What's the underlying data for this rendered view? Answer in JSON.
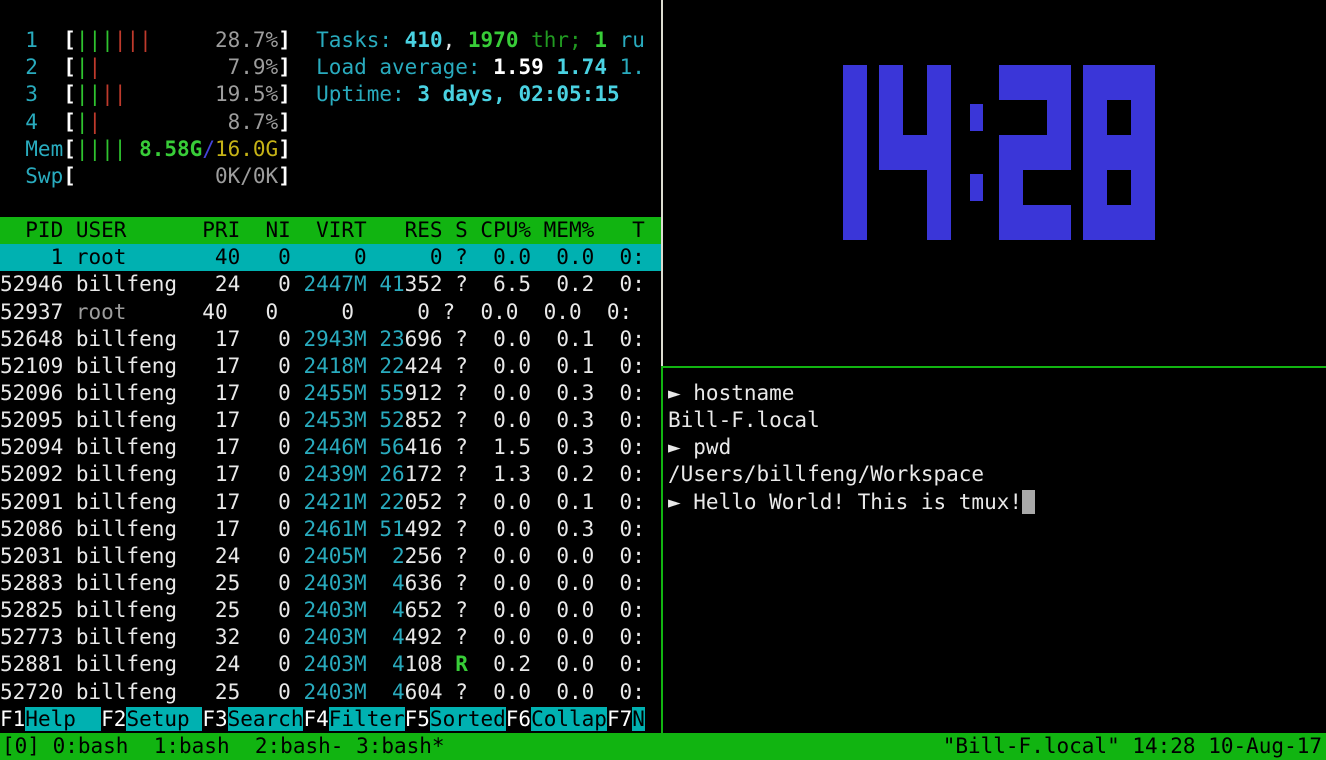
{
  "palette": {
    "background": "#000000",
    "tmux_green": "#11b411",
    "htop_header_green": "#11b411",
    "selection_cyan": "#00b1b1",
    "text_cyan": "#29abbe",
    "bright_cyan": "#4ad2e2",
    "bar_green": "#2fc32f",
    "bar_red": "#bf3a2c",
    "mem_total_yellow": "#c6b316",
    "clock_blue": "#3a36d8",
    "inactive_border": "#dcdcd0"
  },
  "htop": {
    "lines": [
      {
        "r": 1,
        "name": "cpu-meter-1",
        "i": false,
        "segs": [
          {
            "t": "  1  ",
            "c": "cyan"
          },
          {
            "t": "[",
            "c": "wb"
          },
          {
            "t": "|||",
            "c": "gbar"
          },
          {
            "t": "|||",
            "c": "rbar"
          },
          {
            "t": "     ",
            "c": "w"
          },
          {
            "t": "28.7%",
            "c": "gray"
          },
          {
            "t": "]",
            "c": "wb"
          },
          {
            "t": "  ",
            "c": "w"
          },
          {
            "t": "Tasks: ",
            "c": "cyan"
          },
          {
            "t": "410",
            "c": "bcyan"
          },
          {
            "t": ", ",
            "c": "w"
          },
          {
            "t": "1970",
            "c": "bgreen"
          },
          {
            "t": " thr; ",
            "c": "green"
          },
          {
            "t": "1",
            "c": "bgreen"
          },
          {
            "t": " ru",
            "c": "cyan"
          }
        ]
      },
      {
        "r": 2,
        "name": "cpu-meter-2",
        "i": false,
        "segs": [
          {
            "t": "  2  ",
            "c": "cyan"
          },
          {
            "t": "[",
            "c": "wb"
          },
          {
            "t": "|",
            "c": "gbar"
          },
          {
            "t": "|",
            "c": "rbar"
          },
          {
            "t": "         ",
            "c": "w"
          },
          {
            "t": " 7.9%",
            "c": "gray"
          },
          {
            "t": "]",
            "c": "wb"
          },
          {
            "t": "  ",
            "c": "w"
          },
          {
            "t": "Load average: ",
            "c": "cyan"
          },
          {
            "t": "1.59 ",
            "c": "wb"
          },
          {
            "t": "1.74 ",
            "c": "bcyan"
          },
          {
            "t": "1.",
            "c": "cyan"
          }
        ]
      },
      {
        "r": 3,
        "name": "cpu-meter-3",
        "i": false,
        "segs": [
          {
            "t": "  3  ",
            "c": "cyan"
          },
          {
            "t": "[",
            "c": "wb"
          },
          {
            "t": "||",
            "c": "gbar"
          },
          {
            "t": "||",
            "c": "rbar"
          },
          {
            "t": "       ",
            "c": "w"
          },
          {
            "t": "19.5%",
            "c": "gray"
          },
          {
            "t": "]",
            "c": "wb"
          },
          {
            "t": "  ",
            "c": "w"
          },
          {
            "t": "Uptime: ",
            "c": "cyan"
          },
          {
            "t": "3 days, 02:05:15",
            "c": "bcyan"
          }
        ]
      },
      {
        "r": 4,
        "name": "cpu-meter-4",
        "i": false,
        "segs": [
          {
            "t": "  4  ",
            "c": "cyan"
          },
          {
            "t": "[",
            "c": "wb"
          },
          {
            "t": "|",
            "c": "gbar"
          },
          {
            "t": "|",
            "c": "rbar"
          },
          {
            "t": "         ",
            "c": "w"
          },
          {
            "t": " 8.7%",
            "c": "gray"
          },
          {
            "t": "]",
            "c": "wb"
          }
        ]
      },
      {
        "r": 5,
        "name": "memory-meter",
        "i": false,
        "segs": [
          {
            "t": "  Mem",
            "c": "cyan"
          },
          {
            "t": "[",
            "c": "wb"
          },
          {
            "t": "||||",
            "c": "gbar"
          },
          {
            "t": " ",
            "c": "w"
          },
          {
            "t": "8.58G",
            "c": "bgreen"
          },
          {
            "t": "/",
            "c": "blue"
          },
          {
            "t": "16.0G",
            "c": "yellow"
          },
          {
            "t": "]",
            "c": "wb"
          }
        ]
      },
      {
        "r": 6,
        "name": "swap-meter",
        "i": false,
        "segs": [
          {
            "t": "  Swp",
            "c": "cyan"
          },
          {
            "t": "[",
            "c": "wb"
          },
          {
            "t": "           ",
            "c": "w"
          },
          {
            "t": "0K/0K",
            "c": "gray"
          },
          {
            "t": "]",
            "c": "wb"
          }
        ]
      },
      {
        "r": 8,
        "name": "process-table-header",
        "i": true,
        "bg": "bgGreen",
        "segs": [
          {
            "t": "  PID USER      PRI  NI  VIRT   RES S CPU% MEM%   T",
            "c": "hdr"
          }
        ]
      },
      {
        "r": 9,
        "name": "process-row-1-selected",
        "i": true,
        "bg": "bgCyan",
        "segs": [
          {
            "t": "    1 root       40   0     0     0 ?  0.0  0.0  0:",
            "c": "sel"
          }
        ]
      },
      {
        "r": 10,
        "name": "process-row-52946",
        "i": true,
        "segs": [
          {
            "t": "52946 billfeng   24   0 ",
            "c": "w"
          },
          {
            "t": "2447M",
            "c": "cyan"
          },
          {
            "t": " ",
            "c": "w"
          },
          {
            "t": "41",
            "c": "cyan"
          },
          {
            "t": "352",
            "c": "w"
          },
          {
            "t": " ?  6.5  0.2  0:",
            "c": "w"
          }
        ]
      },
      {
        "r": 11,
        "name": "process-row-52937",
        "i": true,
        "segs": [
          {
            "t": "52937 ",
            "c": "w"
          },
          {
            "t": "root     ",
            "c": "gray"
          },
          {
            "t": " 40   0     0     0 ?  0.0  0.0  0:",
            "c": "w"
          }
        ]
      },
      {
        "r": 12,
        "name": "process-row-52648",
        "i": true,
        "segs": [
          {
            "t": "52648 billfeng   17   0 ",
            "c": "w"
          },
          {
            "t": "2943M",
            "c": "cyan"
          },
          {
            "t": " ",
            "c": "w"
          },
          {
            "t": "23",
            "c": "cyan"
          },
          {
            "t": "696",
            "c": "w"
          },
          {
            "t": " ?  0.0  0.1  0:",
            "c": "w"
          }
        ]
      },
      {
        "r": 13,
        "name": "process-row-52109",
        "i": true,
        "segs": [
          {
            "t": "52109 billfeng   17   0 ",
            "c": "w"
          },
          {
            "t": "2418M",
            "c": "cyan"
          },
          {
            "t": " ",
            "c": "w"
          },
          {
            "t": "22",
            "c": "cyan"
          },
          {
            "t": "424",
            "c": "w"
          },
          {
            "t": " ?  0.0  0.1  0:",
            "c": "w"
          }
        ]
      },
      {
        "r": 14,
        "name": "process-row-52096",
        "i": true,
        "segs": [
          {
            "t": "52096 billfeng   17   0 ",
            "c": "w"
          },
          {
            "t": "2455M",
            "c": "cyan"
          },
          {
            "t": " ",
            "c": "w"
          },
          {
            "t": "55",
            "c": "cyan"
          },
          {
            "t": "912",
            "c": "w"
          },
          {
            "t": " ?  0.0  0.3  0:",
            "c": "w"
          }
        ]
      },
      {
        "r": 15,
        "name": "process-row-52095",
        "i": true,
        "segs": [
          {
            "t": "52095 billfeng   17   0 ",
            "c": "w"
          },
          {
            "t": "2453M",
            "c": "cyan"
          },
          {
            "t": " ",
            "c": "w"
          },
          {
            "t": "52",
            "c": "cyan"
          },
          {
            "t": "852",
            "c": "w"
          },
          {
            "t": " ?  0.0  0.3  0:",
            "c": "w"
          }
        ]
      },
      {
        "r": 16,
        "name": "process-row-52094",
        "i": true,
        "segs": [
          {
            "t": "52094 billfeng   17   0 ",
            "c": "w"
          },
          {
            "t": "2446M",
            "c": "cyan"
          },
          {
            "t": " ",
            "c": "w"
          },
          {
            "t": "56",
            "c": "cyan"
          },
          {
            "t": "416",
            "c": "w"
          },
          {
            "t": " ?  1.5  0.3  0:",
            "c": "w"
          }
        ]
      },
      {
        "r": 17,
        "name": "process-row-52092",
        "i": true,
        "segs": [
          {
            "t": "52092 billfeng   17   0 ",
            "c": "w"
          },
          {
            "t": "2439M",
            "c": "cyan"
          },
          {
            "t": " ",
            "c": "w"
          },
          {
            "t": "26",
            "c": "cyan"
          },
          {
            "t": "172",
            "c": "w"
          },
          {
            "t": " ?  1.3  0.2  0:",
            "c": "w"
          }
        ]
      },
      {
        "r": 18,
        "name": "process-row-52091",
        "i": true,
        "segs": [
          {
            "t": "52091 billfeng   17   0 ",
            "c": "w"
          },
          {
            "t": "2421M",
            "c": "cyan"
          },
          {
            "t": " ",
            "c": "w"
          },
          {
            "t": "22",
            "c": "cyan"
          },
          {
            "t": "052",
            "c": "w"
          },
          {
            "t": " ?  0.0  0.1  0:",
            "c": "w"
          }
        ]
      },
      {
        "r": 19,
        "name": "process-row-52086",
        "i": true,
        "segs": [
          {
            "t": "52086 billfeng   17   0 ",
            "c": "w"
          },
          {
            "t": "2461M",
            "c": "cyan"
          },
          {
            "t": " ",
            "c": "w"
          },
          {
            "t": "51",
            "c": "cyan"
          },
          {
            "t": "492",
            "c": "w"
          },
          {
            "t": " ?  0.0  0.3  0:",
            "c": "w"
          }
        ]
      },
      {
        "r": 20,
        "name": "process-row-52031",
        "i": true,
        "segs": [
          {
            "t": "52031 billfeng   24   0 ",
            "c": "w"
          },
          {
            "t": "2405M",
            "c": "cyan"
          },
          {
            "t": "  ",
            "c": "w"
          },
          {
            "t": "2",
            "c": "cyan"
          },
          {
            "t": "256",
            "c": "w"
          },
          {
            "t": " ?  0.0  0.0  0:",
            "c": "w"
          }
        ]
      },
      {
        "r": 21,
        "name": "process-row-52883",
        "i": true,
        "segs": [
          {
            "t": "52883 billfeng   25   0 ",
            "c": "w"
          },
          {
            "t": "2403M",
            "c": "cyan"
          },
          {
            "t": "  ",
            "c": "w"
          },
          {
            "t": "4",
            "c": "cyan"
          },
          {
            "t": "636",
            "c": "w"
          },
          {
            "t": " ?  0.0  0.0  0:",
            "c": "w"
          }
        ]
      },
      {
        "r": 22,
        "name": "process-row-52825",
        "i": true,
        "segs": [
          {
            "t": "52825 billfeng   25   0 ",
            "c": "w"
          },
          {
            "t": "2403M",
            "c": "cyan"
          },
          {
            "t": "  ",
            "c": "w"
          },
          {
            "t": "4",
            "c": "cyan"
          },
          {
            "t": "652",
            "c": "w"
          },
          {
            "t": " ?  0.0  0.0  0:",
            "c": "w"
          }
        ]
      },
      {
        "r": 23,
        "name": "process-row-52773",
        "i": true,
        "segs": [
          {
            "t": "52773 billfeng   32   0 ",
            "c": "w"
          },
          {
            "t": "2403M",
            "c": "cyan"
          },
          {
            "t": "  ",
            "c": "w"
          },
          {
            "t": "4",
            "c": "cyan"
          },
          {
            "t": "492",
            "c": "w"
          },
          {
            "t": " ?  0.0  0.0  0:",
            "c": "w"
          }
        ]
      },
      {
        "r": 24,
        "name": "process-row-52881",
        "i": true,
        "segs": [
          {
            "t": "52881 billfeng   24   0 ",
            "c": "w"
          },
          {
            "t": "2403M",
            "c": "cyan"
          },
          {
            "t": "  ",
            "c": "w"
          },
          {
            "t": "4",
            "c": "cyan"
          },
          {
            "t": "108",
            "c": "w"
          },
          {
            "t": " ",
            "c": "w"
          },
          {
            "t": "R",
            "c": "bgreen"
          },
          {
            "t": "  0.2  0.0  0:",
            "c": "w"
          }
        ]
      },
      {
        "r": 25,
        "name": "process-row-52720",
        "i": true,
        "segs": [
          {
            "t": "52720 billfeng   25   0 ",
            "c": "w"
          },
          {
            "t": "2403M",
            "c": "cyan"
          },
          {
            "t": "  ",
            "c": "w"
          },
          {
            "t": "4",
            "c": "cyan"
          },
          {
            "t": "604",
            "c": "w"
          },
          {
            "t": " ?  0.0  0.0  0:",
            "c": "w"
          }
        ]
      },
      {
        "r": 26,
        "name": "function-key-bar",
        "i": false,
        "segs": [
          {
            "t": "F1",
            "c": "key",
            "n": "fkey-f1",
            "i": true
          },
          {
            "t": "Help  ",
            "c": "fn",
            "n": "fkey-help-button",
            "i": true
          },
          {
            "t": "F2",
            "c": "key",
            "n": "fkey-f2",
            "i": true
          },
          {
            "t": "Setup ",
            "c": "fn",
            "n": "fkey-setup-button",
            "i": true
          },
          {
            "t": "F3",
            "c": "key",
            "n": "fkey-f3",
            "i": true
          },
          {
            "t": "Search",
            "c": "fn",
            "n": "fkey-search-button",
            "i": true
          },
          {
            "t": "F4",
            "c": "key",
            "n": "fkey-f4",
            "i": true
          },
          {
            "t": "Filter",
            "c": "fn",
            "n": "fkey-filter-button",
            "i": true
          },
          {
            "t": "F5",
            "c": "key",
            "n": "fkey-f5",
            "i": true
          },
          {
            "t": "Sorted",
            "c": "fn",
            "n": "fkey-sorted-button",
            "i": true
          },
          {
            "t": "F6",
            "c": "key",
            "n": "fkey-f6",
            "i": true
          },
          {
            "t": "Collap",
            "c": "fn",
            "n": "fkey-collap-button",
            "i": true
          },
          {
            "t": "F7",
            "c": "key",
            "n": "fkey-f7",
            "i": true
          },
          {
            "t": "N",
            "c": "fn",
            "n": "fkey-nice-button",
            "i": true
          }
        ]
      }
    ]
  },
  "terminal": {
    "lines": [
      {
        "r": 14,
        "name": "command-line-hostname",
        "i": false,
        "segs": [
          {
            "t": "► hostname",
            "c": "w"
          }
        ]
      },
      {
        "r": 15,
        "name": "output-hostname",
        "i": false,
        "segs": [
          {
            "t": "Bill-F.local",
            "c": "w"
          }
        ]
      },
      {
        "r": 16,
        "name": "command-line-pwd",
        "i": false,
        "segs": [
          {
            "t": "► pwd",
            "c": "w"
          }
        ]
      },
      {
        "r": 17,
        "name": "output-pwd",
        "i": false,
        "segs": [
          {
            "t": "/Users/billfeng/Workspace",
            "c": "w"
          }
        ]
      },
      {
        "r": 18,
        "name": "active-command-line",
        "i": true,
        "segs": [
          {
            "t": "► Hello World! This is tmux!",
            "c": "w"
          },
          {
            "t": " ",
            "c": "cursor",
            "n": "text-cursor",
            "i": true
          }
        ]
      }
    ]
  },
  "clock": {
    "time": "14:28",
    "color": "#3a36d8",
    "patterns": {
      "1": [
        "001",
        "001",
        "001",
        "001",
        "001"
      ],
      "4": [
        "101",
        "101",
        "111",
        "001",
        "001"
      ],
      "2": [
        "111",
        "001",
        "111",
        "100",
        "111"
      ],
      "8": [
        "111",
        "101",
        "111",
        "101",
        "111"
      ],
      ":": [
        "0",
        "1",
        "0",
        "1",
        "0"
      ]
    }
  },
  "statusbar": {
    "left": [
      {
        "t": "[0] ",
        "c": "sb",
        "n": "session-name",
        "i": false
      },
      {
        "t": "0:bash",
        "c": "sb",
        "n": "window-0-bash",
        "i": true
      },
      {
        "t": "  ",
        "c": "sb"
      },
      {
        "t": "1:bash",
        "c": "sb",
        "n": "window-1-bash",
        "i": true
      },
      {
        "t": "  ",
        "c": "sb"
      },
      {
        "t": "2:bash-",
        "c": "sb",
        "n": "window-2-bash-last",
        "i": true
      },
      {
        "t": " ",
        "c": "sb"
      },
      {
        "t": "3:bash*",
        "c": "sb",
        "n": "window-3-bash-current",
        "i": true
      }
    ],
    "right": "\"Bill-F.local\" 14:28 10-Aug-17"
  }
}
